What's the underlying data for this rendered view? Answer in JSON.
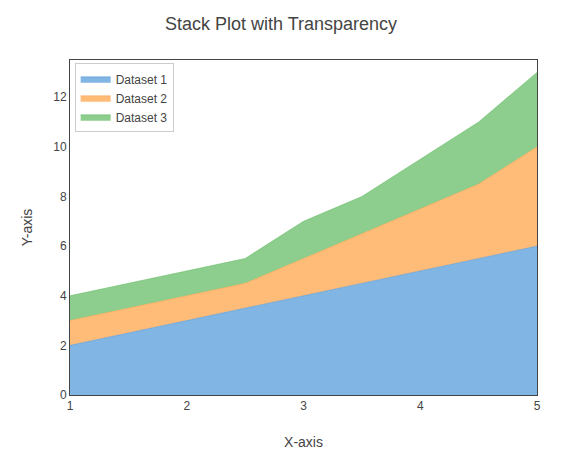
{
  "chart_data": {
    "type": "area",
    "stacked": true,
    "title": "Stack Plot with Transparency",
    "xlabel": "X-axis",
    "ylabel": "Y-axis",
    "x": [
      1.0,
      1.5,
      2.0,
      2.5,
      3.0,
      3.5,
      4.0,
      4.5,
      5.0
    ],
    "series": [
      {
        "name": "Dataset 1",
        "color": "#4C96D7",
        "values": [
          2.0,
          2.5,
          3.0,
          3.5,
          4.0,
          4.5,
          5.0,
          5.5,
          6.0
        ]
      },
      {
        "name": "Dataset 2",
        "color": "#FF9F40",
        "values": [
          1.0,
          1.0,
          1.0,
          1.0,
          1.5,
          2.0,
          2.5,
          3.0,
          4.0
        ]
      },
      {
        "name": "Dataset 3",
        "color": "#5CB85C",
        "values": [
          1.0,
          1.0,
          1.0,
          1.0,
          1.5,
          1.5,
          2.0,
          2.5,
          3.0
        ]
      }
    ],
    "xlim": [
      1.0,
      5.0
    ],
    "xticks": [
      1,
      2,
      3,
      4,
      5
    ],
    "ylim": [
      0,
      13.5
    ],
    "yticks": [
      0,
      2,
      4,
      6,
      8,
      10,
      12
    ],
    "grid": false,
    "legend": "upper left"
  }
}
